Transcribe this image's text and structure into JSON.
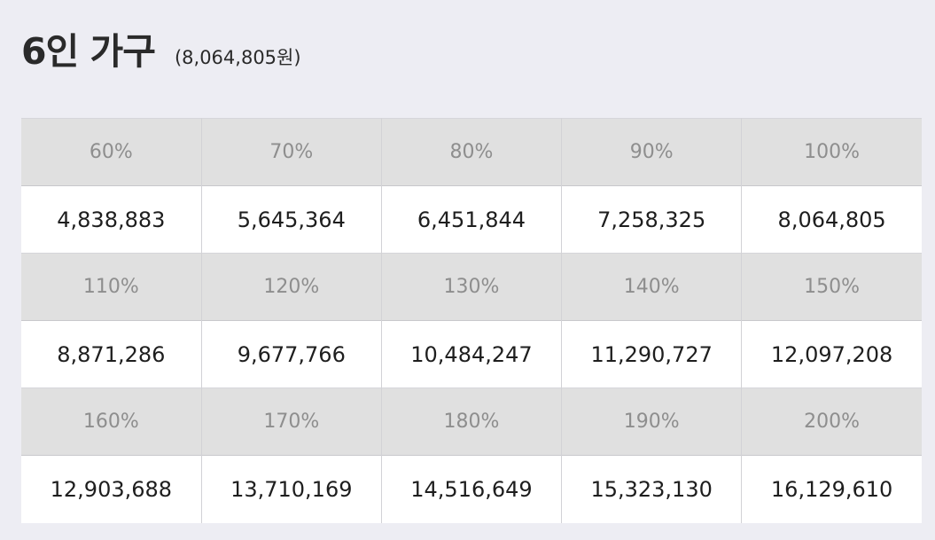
{
  "header": {
    "title": "6인 가구",
    "subtitle": "(8,064,805원)"
  },
  "table": {
    "groups": [
      {
        "percents": [
          "60%",
          "70%",
          "80%",
          "90%",
          "100%"
        ],
        "values": [
          "4,838,883",
          "5,645,364",
          "6,451,844",
          "7,258,325",
          "8,064,805"
        ]
      },
      {
        "percents": [
          "110%",
          "120%",
          "130%",
          "140%",
          "150%"
        ],
        "values": [
          "8,871,286",
          "9,677,766",
          "10,484,247",
          "11,290,727",
          "12,097,208"
        ]
      },
      {
        "percents": [
          "160%",
          "170%",
          "180%",
          "190%",
          "200%"
        ],
        "values": [
          "12,903,688",
          "13,710,169",
          "14,516,649",
          "15,323,130",
          "16,129,610"
        ]
      }
    ]
  },
  "colors": {
    "page_background": "#ededf3",
    "percent_row_background": "#e0e0e0",
    "value_row_background": "#ffffff",
    "percent_text": "#8e8e8e",
    "value_text": "#1e1e1e"
  }
}
